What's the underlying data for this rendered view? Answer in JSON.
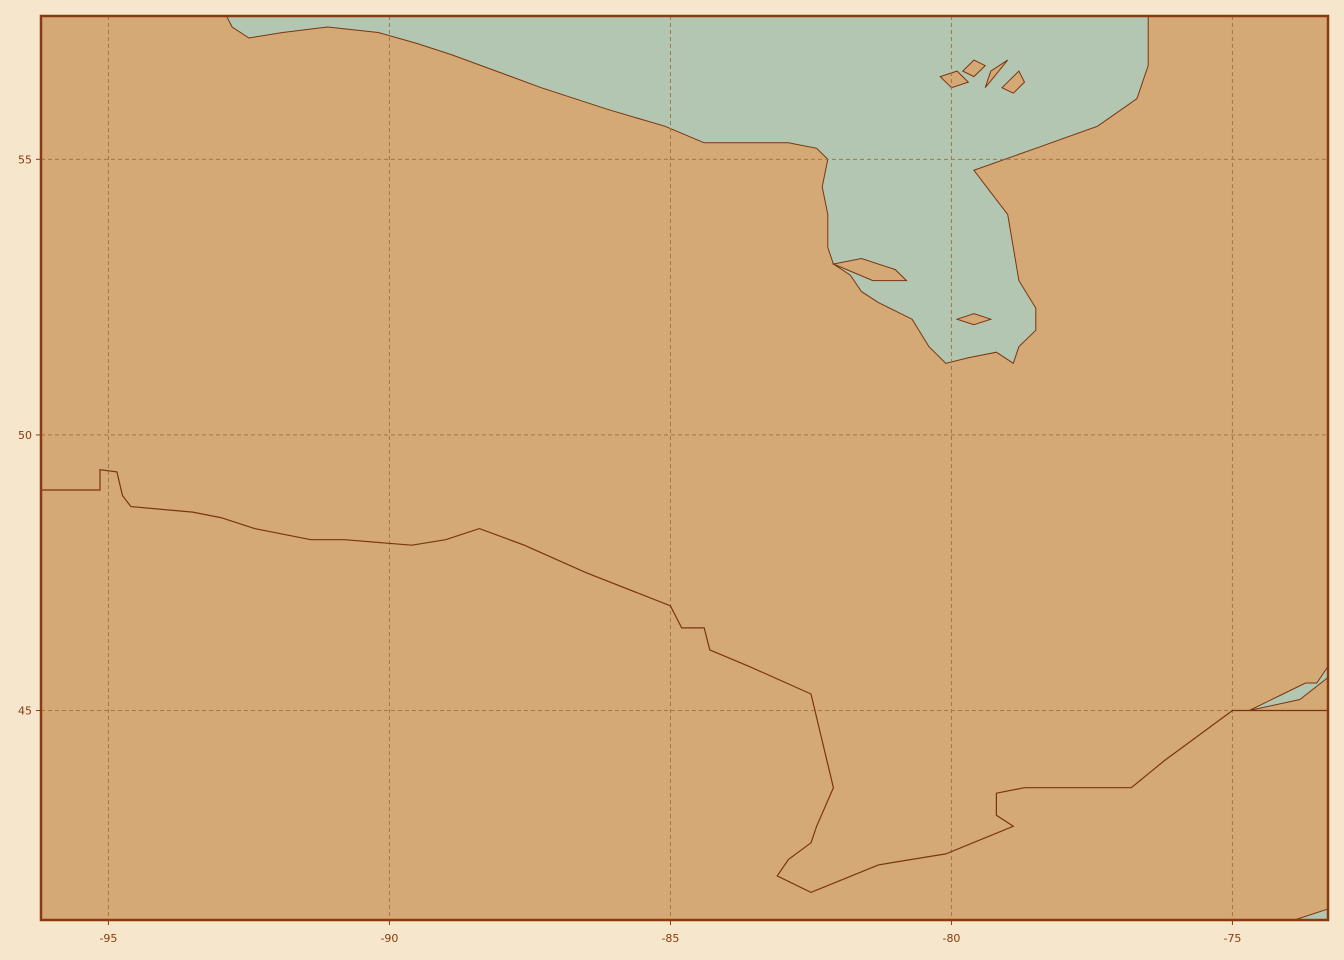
{
  "map": {
    "projection": "plate-carree",
    "extent": {
      "lon_min": -96.2,
      "lon_max": -73.3,
      "lat_min": 41.2,
      "lat_max": 57.6
    },
    "colors": {
      "page_background": "#f5e6cc",
      "land": "#d4a976",
      "water": "#b3c6b1",
      "coastline": "#7a3510",
      "frame": "#8b3a0f",
      "gridlines": "#a0784a",
      "tick_labels": "#8b3a0f"
    },
    "gridlines": {
      "visible": true,
      "style": "dashed"
    },
    "x_ticks": [
      {
        "value": -95,
        "label": "-95"
      },
      {
        "value": -90,
        "label": "-90"
      },
      {
        "value": -85,
        "label": "-85"
      },
      {
        "value": -80,
        "label": "-80"
      },
      {
        "value": -75,
        "label": "-75"
      }
    ],
    "y_ticks": [
      {
        "value": 55,
        "label": "55"
      },
      {
        "value": 50,
        "label": "50"
      },
      {
        "value": 45,
        "label": "45"
      }
    ],
    "features": {
      "hudson_bay": [
        [
          -92.9,
          57.6
        ],
        [
          -92.8,
          57.4
        ],
        [
          -92.5,
          57.2
        ],
        [
          -91.9,
          57.3
        ],
        [
          -91.1,
          57.4
        ],
        [
          -90.2,
          57.3
        ],
        [
          -89.5,
          57.1
        ],
        [
          -88.9,
          56.9
        ],
        [
          -88.1,
          56.6
        ],
        [
          -87.3,
          56.3
        ],
        [
          -86.1,
          55.9
        ],
        [
          -85.1,
          55.6
        ],
        [
          -84.4,
          55.3
        ],
        [
          -83.5,
          55.3
        ],
        [
          -82.9,
          55.3
        ],
        [
          -82.4,
          55.2
        ],
        [
          -82.2,
          55.0
        ],
        [
          -82.3,
          54.5
        ],
        [
          -82.2,
          54.0
        ],
        [
          -82.2,
          53.4
        ],
        [
          -82.1,
          53.1
        ],
        [
          -81.8,
          52.9
        ],
        [
          -81.6,
          52.6
        ],
        [
          -81.3,
          52.4
        ],
        [
          -80.7,
          52.1
        ],
        [
          -80.4,
          51.6
        ],
        [
          -80.1,
          51.3
        ],
        [
          -79.7,
          51.4
        ],
        [
          -79.2,
          51.5
        ],
        [
          -78.9,
          51.3
        ],
        [
          -78.8,
          51.6
        ],
        [
          -78.5,
          51.9
        ],
        [
          -78.5,
          52.3
        ],
        [
          -78.8,
          52.8
        ],
        [
          -78.9,
          53.4
        ],
        [
          -79.0,
          54.0
        ],
        [
          -79.3,
          54.4
        ],
        [
          -79.6,
          54.8
        ],
        [
          -78.5,
          55.2
        ],
        [
          -77.4,
          55.6
        ],
        [
          -76.7,
          56.1
        ],
        [
          -76.5,
          56.7
        ],
        [
          -76.5,
          57.6
        ]
      ],
      "lakes_north": [
        [
          [
            -80.2,
            56.5
          ],
          [
            -79.9,
            56.6
          ],
          [
            -79.7,
            56.4
          ],
          [
            -80.0,
            56.3
          ],
          [
            -80.2,
            56.5
          ]
        ],
        [
          [
            -79.6,
            56.8
          ],
          [
            -79.4,
            56.7
          ],
          [
            -79.6,
            56.5
          ],
          [
            -79.8,
            56.6
          ],
          [
            -79.6,
            56.8
          ]
        ],
        [
          [
            -78.8,
            56.6
          ],
          [
            -78.7,
            56.4
          ],
          [
            -78.9,
            56.2
          ],
          [
            -79.1,
            56.3
          ],
          [
            -78.8,
            56.6
          ]
        ],
        [
          [
            -79.0,
            56.8
          ],
          [
            -79.4,
            56.3
          ],
          [
            -79.3,
            56.6
          ],
          [
            -79.0,
            56.8
          ]
        ]
      ],
      "lakes_bay": [
        [
          [
            -82.1,
            53.1
          ],
          [
            -81.6,
            53.2
          ],
          [
            -81.0,
            53.0
          ],
          [
            -80.8,
            52.8
          ],
          [
            -81.4,
            52.8
          ],
          [
            -82.1,
            53.1
          ]
        ],
        [
          [
            -79.6,
            52.0
          ],
          [
            -79.3,
            52.1
          ],
          [
            -79.6,
            52.2
          ],
          [
            -79.9,
            52.1
          ],
          [
            -79.6,
            52.0
          ]
        ]
      ],
      "us_canada_border": [
        [
          -96.2,
          49.0
        ],
        [
          -95.15,
          49.0
        ],
        [
          -95.15,
          49.37
        ],
        [
          -94.85,
          49.33
        ],
        [
          -94.75,
          48.9
        ],
        [
          -94.6,
          48.7
        ],
        [
          -93.5,
          48.6
        ],
        [
          -93.0,
          48.5
        ],
        [
          -92.4,
          48.3
        ],
        [
          -91.4,
          48.1
        ],
        [
          -90.8,
          48.1
        ],
        [
          -89.6,
          48.0
        ],
        [
          -89.0,
          48.1
        ],
        [
          -88.4,
          48.3
        ],
        [
          -87.6,
          48.0
        ],
        [
          -86.5,
          47.5
        ],
        [
          -85.0,
          46.9
        ],
        [
          -84.8,
          46.5
        ],
        [
          -84.4,
          46.5
        ],
        [
          -84.3,
          46.1
        ],
        [
          -83.6,
          45.8
        ],
        [
          -82.5,
          45.3
        ],
        [
          -82.1,
          43.6
        ],
        [
          -82.4,
          42.9
        ],
        [
          -82.5,
          42.6
        ],
        [
          -82.9,
          42.3
        ],
        [
          -83.1,
          42.0
        ],
        [
          -82.5,
          41.7
        ],
        [
          -81.3,
          42.2
        ],
        [
          -80.1,
          42.4
        ],
        [
          -78.9,
          42.9
        ],
        [
          -79.2,
          43.1
        ],
        [
          -79.2,
          43.5
        ],
        [
          -78.7,
          43.6
        ],
        [
          -76.8,
          43.6
        ],
        [
          -76.2,
          44.1
        ],
        [
          -75.8,
          44.4
        ],
        [
          -75.0,
          45.0
        ],
        [
          -73.3,
          45.0
        ]
      ],
      "st_lawrence": [
        [
          -74.7,
          45.0
        ],
        [
          -74.1,
          45.3
        ],
        [
          -73.7,
          45.5
        ],
        [
          -73.5,
          45.5
        ],
        [
          -73.3,
          45.8
        ],
        [
          -73.3,
          45.6
        ],
        [
          -73.8,
          45.2
        ],
        [
          -74.7,
          45.0
        ]
      ],
      "se_corner_water": [
        [
          -73.9,
          41.2
        ],
        [
          -73.3,
          41.4
        ],
        [
          -73.3,
          41.2
        ],
        [
          -73.9,
          41.2
        ]
      ]
    }
  }
}
